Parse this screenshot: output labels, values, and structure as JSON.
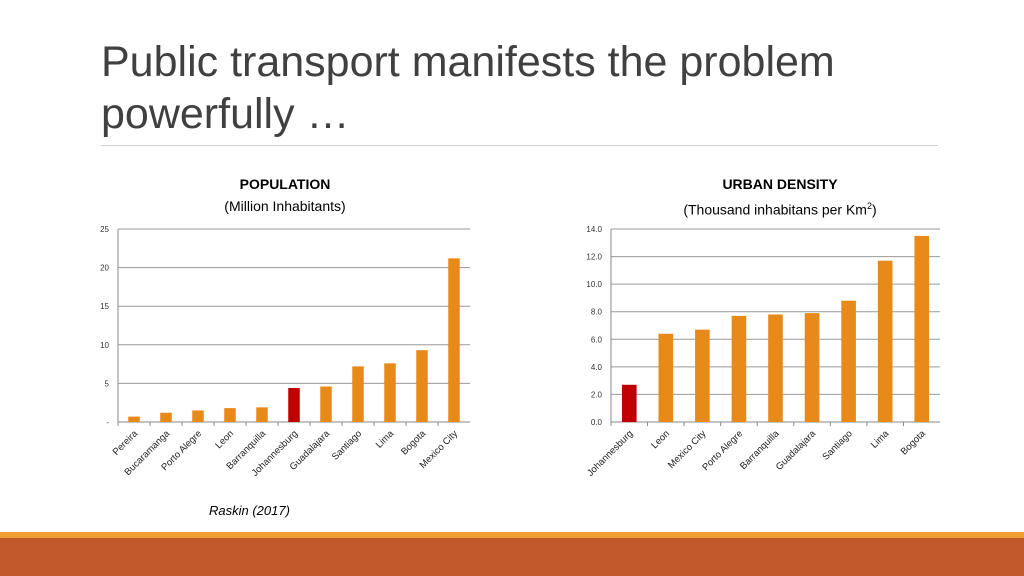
{
  "slide": {
    "title_line1": "Public transport manifests the problem",
    "title_line2": "powerfully …",
    "source": "Raskin (2017)"
  },
  "colors": {
    "bar": "#e88a1a",
    "highlight": "#c00000",
    "band_top": "#f0a030",
    "band_bottom": "#c0582a"
  },
  "chart_data": [
    {
      "type": "bar",
      "title": "POPULATION",
      "subtitle": "(Million Inhabitants)",
      "categories": [
        "Pereira",
        "Bucaramanga",
        "Porto Alegre",
        "Leon",
        "Barranquilla",
        "Johannesburg",
        "Guadalajara",
        "Santiago",
        "Lima",
        "Bogota",
        "Mexico City"
      ],
      "values": [
        0.7,
        1.2,
        1.5,
        1.8,
        1.9,
        4.4,
        4.6,
        7.2,
        7.6,
        9.3,
        21.2
      ],
      "highlight": "Johannesburg",
      "ylim": [
        0,
        25
      ],
      "yticks": [
        "-",
        "5",
        "10",
        "15",
        "20",
        "25"
      ],
      "grid": true
    },
    {
      "type": "bar",
      "title": "URBAN DENSITY",
      "subtitle": "(Thousand inhabitans per Km",
      "subtitle_sup": "2",
      "subtitle_end": ")",
      "categories": [
        "Johannesburg",
        "Leon",
        "Mexico City",
        "Porto Alegre",
        "Barranquilla",
        "Guadalajara",
        "Santiago",
        "Lima",
        "Bogota"
      ],
      "values": [
        2.7,
        6.4,
        6.7,
        7.7,
        7.8,
        7.9,
        8.8,
        11.7,
        13.5
      ],
      "highlight": "Johannesburg",
      "ylim": [
        0,
        14
      ],
      "yticks": [
        "0.0",
        "2.0",
        "4.0",
        "6.0",
        "8.0",
        "10.0",
        "12.0",
        "14.0"
      ],
      "grid": true
    }
  ]
}
